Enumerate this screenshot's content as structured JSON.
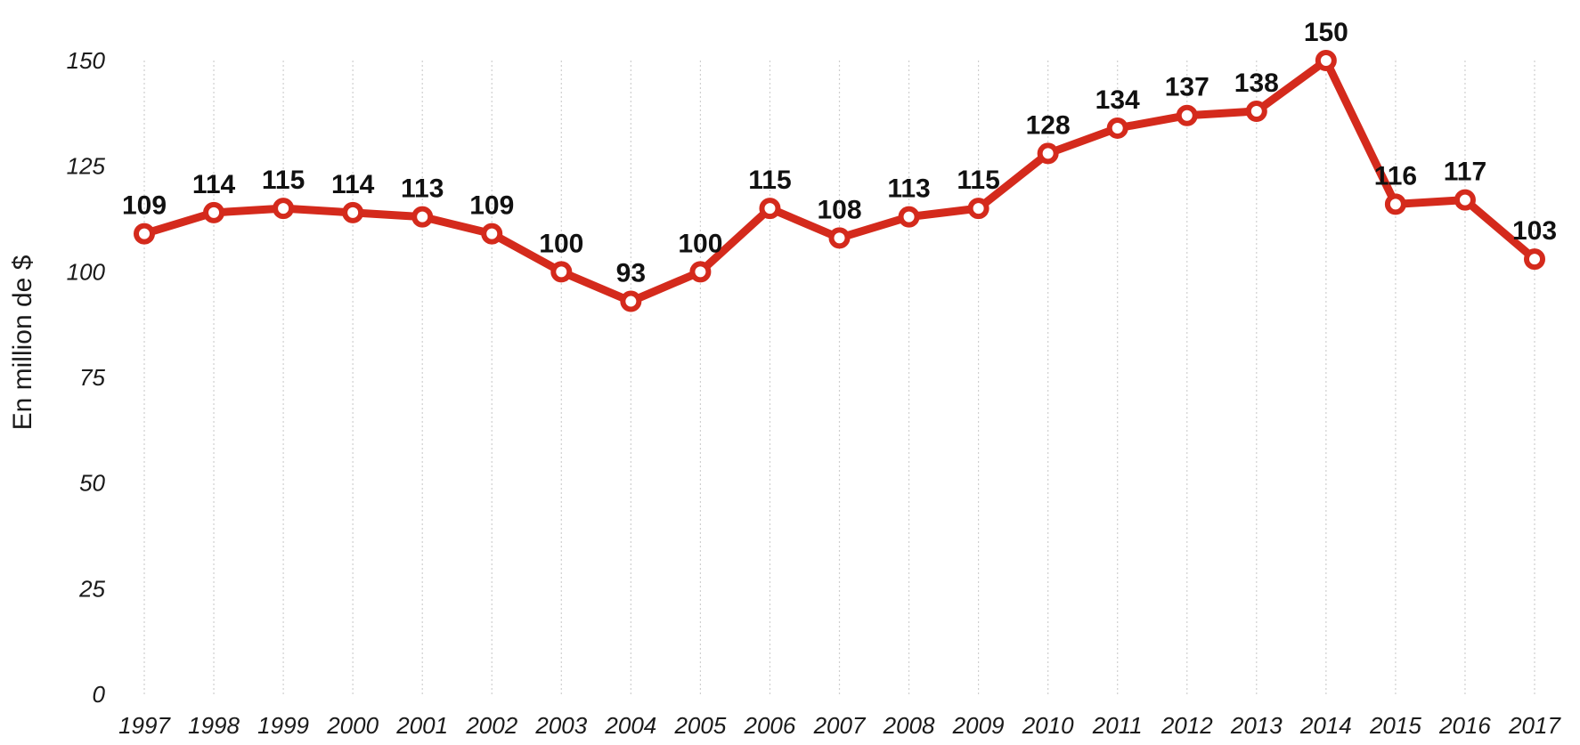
{
  "chart_data": {
    "type": "line",
    "title": "",
    "xlabel": "",
    "ylabel": "En million de $",
    "ylim": [
      0,
      150
    ],
    "yticks": [
      0,
      25,
      50,
      75,
      100,
      125,
      150
    ],
    "categories": [
      "1997",
      "1998",
      "1999",
      "2000",
      "2001",
      "2002",
      "2003",
      "2004",
      "2005",
      "2006",
      "2007",
      "2008",
      "2009",
      "2010",
      "2011",
      "2012",
      "2013",
      "2014",
      "2015",
      "2016",
      "2017"
    ],
    "values": [
      109,
      114,
      115,
      114,
      113,
      109,
      100,
      93,
      100,
      115,
      108,
      113,
      115,
      128,
      134,
      137,
      138,
      150,
      116,
      117,
      103
    ],
    "grid": "vertical",
    "legend": "none",
    "line_color": "#d42a1c"
  }
}
